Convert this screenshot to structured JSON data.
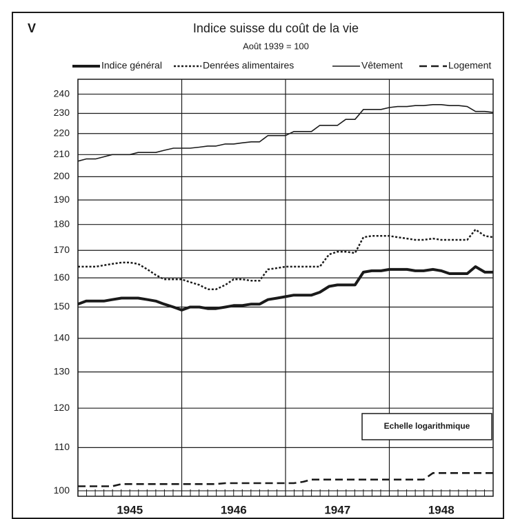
{
  "chart_data": {
    "type": "line",
    "panel_label": "V",
    "title": "Indice suisse du coût de la vie",
    "subtitle": "Août 1939 = 100",
    "annotation": "Echelle logarithmique",
    "log_scale": true,
    "grid": true,
    "legend_position": "top",
    "x": [
      1945,
      1945.08,
      1945.17,
      1945.25,
      1945.33,
      1945.42,
      1945.5,
      1945.58,
      1945.67,
      1945.75,
      1945.83,
      1945.92,
      1946,
      1946.08,
      1946.17,
      1946.25,
      1946.33,
      1946.42,
      1946.5,
      1946.58,
      1946.67,
      1946.75,
      1946.83,
      1946.92,
      1947,
      1947.08,
      1947.17,
      1947.25,
      1947.33,
      1947.42,
      1947.5,
      1947.58,
      1947.67,
      1947.75,
      1947.83,
      1947.92,
      1948,
      1948.08,
      1948.17,
      1948.25,
      1948.33,
      1948.42,
      1948.5,
      1948.58,
      1948.67,
      1948.75,
      1948.83,
      1948.92,
      1949
    ],
    "xlim": [
      1945,
      1949
    ],
    "xticks": [
      {
        "value": 1945,
        "label": "1945"
      },
      {
        "value": 1946,
        "label": "1946"
      },
      {
        "value": 1947,
        "label": "1947"
      },
      {
        "value": 1948,
        "label": "1948"
      }
    ],
    "ylim": [
      98.8,
      248
    ],
    "yticks": [
      100,
      110,
      120,
      130,
      140,
      150,
      160,
      170,
      180,
      190,
      200,
      210,
      220,
      230,
      240
    ],
    "series": [
      {
        "name": "Indice général",
        "color": "#1a1a1a",
        "style": "thick",
        "values": [
          151,
          152,
          152,
          152,
          152.5,
          153,
          153,
          153,
          152.5,
          152,
          151,
          150,
          149,
          150,
          150,
          149.5,
          149.5,
          150,
          150.5,
          150.5,
          151,
          151,
          152.5,
          153,
          153.5,
          154,
          154,
          154,
          155,
          157,
          157.5,
          157.5,
          157.5,
          162,
          162.5,
          162.5,
          163,
          163,
          163,
          162.5,
          162.5,
          163,
          162.5,
          161.5,
          161.5,
          161.5,
          164,
          162,
          162
        ]
      },
      {
        "name": "Denrées alimentaires",
        "color": "#1a1a1a",
        "style": "dotted",
        "values": [
          164,
          164,
          164,
          164.5,
          165,
          165.5,
          165.5,
          165,
          163,
          161,
          159.5,
          159.5,
          159.5,
          158.5,
          157.5,
          156,
          156,
          157.5,
          159.5,
          159.5,
          159,
          159,
          163,
          163.5,
          164,
          164,
          164,
          164,
          164,
          168.5,
          169.5,
          169.5,
          169,
          175,
          175.5,
          175.5,
          175.5,
          175,
          174.5,
          174,
          174,
          174.5,
          174,
          174,
          174,
          174,
          178,
          175.5,
          175
        ]
      },
      {
        "name": "Vêtement",
        "color": "#1a1a1a",
        "style": "thin",
        "values": [
          207,
          208,
          208,
          209,
          210,
          210,
          210,
          211,
          211,
          211,
          212,
          213,
          213,
          213,
          213.5,
          214,
          214,
          215,
          215,
          215.5,
          216,
          216,
          219,
          219,
          219,
          221,
          221,
          221,
          224,
          224,
          224,
          227,
          227,
          232,
          232,
          232,
          233,
          233.5,
          233.5,
          234,
          234,
          234.5,
          234.5,
          234,
          234,
          233.5,
          231,
          231,
          230.5
        ]
      },
      {
        "name": "Logement",
        "color": "#1a1a1a",
        "style": "dashed",
        "values": [
          101,
          101,
          101,
          101,
          101,
          101.5,
          101.5,
          101.5,
          101.5,
          101.5,
          101.5,
          101.5,
          101.5,
          101.5,
          101.5,
          101.5,
          101.5,
          101.7,
          101.7,
          101.7,
          101.7,
          101.7,
          101.7,
          101.7,
          101.7,
          101.7,
          102,
          102.5,
          102.5,
          102.5,
          102.5,
          102.5,
          102.5,
          102.5,
          102.5,
          102.5,
          102.5,
          102.5,
          102.5,
          102.5,
          102.5,
          104,
          104,
          104,
          104,
          104,
          104,
          104,
          104
        ]
      }
    ]
  }
}
